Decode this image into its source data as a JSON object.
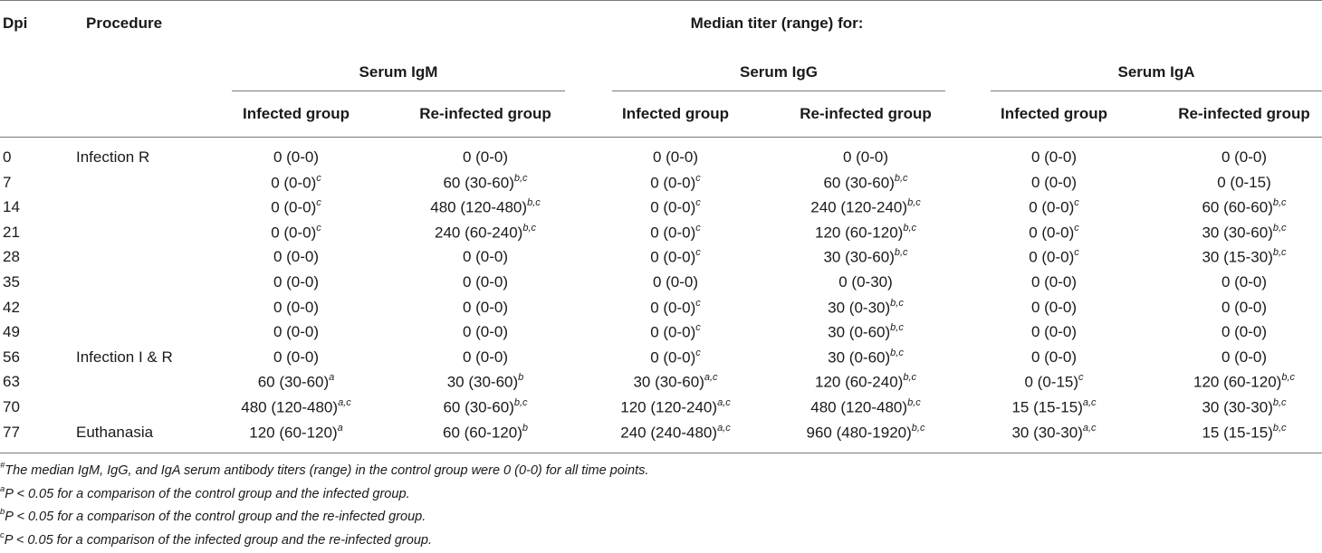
{
  "header": {
    "dpi": "Dpi",
    "procedure": "Procedure",
    "median_title": "Median titer (range) for:",
    "groups": [
      "Serum IgM",
      "Serum IgG",
      "Serum IgA"
    ],
    "subcols": [
      "Infected group",
      "Re-infected group",
      "Infected group",
      "Re-infected group",
      "Infected group",
      "Re-infected group"
    ]
  },
  "rows": [
    {
      "dpi": "0",
      "procedure": "Infection R",
      "cells": [
        {
          "v": "0 (0-0)",
          "s": ""
        },
        {
          "v": "0 (0-0)",
          "s": ""
        },
        {
          "v": "0 (0-0)",
          "s": ""
        },
        {
          "v": "0 (0-0)",
          "s": ""
        },
        {
          "v": "0 (0-0)",
          "s": ""
        },
        {
          "v": "0 (0-0)",
          "s": ""
        }
      ]
    },
    {
      "dpi": "7",
      "procedure": "",
      "cells": [
        {
          "v": "0 (0-0)",
          "s": "c"
        },
        {
          "v": "60 (30-60)",
          "s": "b,c"
        },
        {
          "v": "0 (0-0)",
          "s": "c"
        },
        {
          "v": "60 (30-60)",
          "s": "b,c"
        },
        {
          "v": "0 (0-0)",
          "s": ""
        },
        {
          "v": "0 (0-15)",
          "s": ""
        }
      ]
    },
    {
      "dpi": "14",
      "procedure": "",
      "cells": [
        {
          "v": "0 (0-0)",
          "s": "c"
        },
        {
          "v": "480 (120-480)",
          "s": "b,c"
        },
        {
          "v": "0 (0-0)",
          "s": "c"
        },
        {
          "v": "240 (120-240)",
          "s": "b,c"
        },
        {
          "v": "0 (0-0)",
          "s": "c"
        },
        {
          "v": "60 (60-60)",
          "s": "b,c"
        }
      ]
    },
    {
      "dpi": "21",
      "procedure": "",
      "cells": [
        {
          "v": "0 (0-0)",
          "s": "c"
        },
        {
          "v": "240 (60-240)",
          "s": "b,c"
        },
        {
          "v": "0 (0-0)",
          "s": "c"
        },
        {
          "v": "120 (60-120)",
          "s": "b,c"
        },
        {
          "v": "0 (0-0)",
          "s": "c"
        },
        {
          "v": "30 (30-60)",
          "s": "b,c"
        }
      ]
    },
    {
      "dpi": "28",
      "procedure": "",
      "cells": [
        {
          "v": "0 (0-0)",
          "s": ""
        },
        {
          "v": "0 (0-0)",
          "s": ""
        },
        {
          "v": "0 (0-0)",
          "s": "c"
        },
        {
          "v": "30 (30-60)",
          "s": "b,c"
        },
        {
          "v": "0 (0-0)",
          "s": "c"
        },
        {
          "v": "30 (15-30)",
          "s": "b,c"
        }
      ]
    },
    {
      "dpi": "35",
      "procedure": "",
      "cells": [
        {
          "v": "0 (0-0)",
          "s": ""
        },
        {
          "v": "0 (0-0)",
          "s": ""
        },
        {
          "v": "0 (0-0)",
          "s": ""
        },
        {
          "v": "0 (0-30)",
          "s": ""
        },
        {
          "v": "0 (0-0)",
          "s": ""
        },
        {
          "v": "0 (0-0)",
          "s": ""
        }
      ]
    },
    {
      "dpi": "42",
      "procedure": "",
      "cells": [
        {
          "v": "0 (0-0)",
          "s": ""
        },
        {
          "v": "0 (0-0)",
          "s": ""
        },
        {
          "v": "0 (0-0)",
          "s": "c"
        },
        {
          "v": "30 (0-30)",
          "s": "b,c"
        },
        {
          "v": "0 (0-0)",
          "s": ""
        },
        {
          "v": "0 (0-0)",
          "s": ""
        }
      ]
    },
    {
      "dpi": "49",
      "procedure": "",
      "cells": [
        {
          "v": "0 (0-0)",
          "s": ""
        },
        {
          "v": "0 (0-0)",
          "s": ""
        },
        {
          "v": "0 (0-0)",
          "s": "c"
        },
        {
          "v": "30 (0-60)",
          "s": "b,c"
        },
        {
          "v": "0 (0-0)",
          "s": ""
        },
        {
          "v": "0 (0-0)",
          "s": ""
        }
      ]
    },
    {
      "dpi": "56",
      "procedure": "Infection I & R",
      "cells": [
        {
          "v": "0 (0-0)",
          "s": ""
        },
        {
          "v": "0 (0-0)",
          "s": ""
        },
        {
          "v": "0 (0-0)",
          "s": "c"
        },
        {
          "v": "30 (0-60)",
          "s": "b,c"
        },
        {
          "v": "0 (0-0)",
          "s": ""
        },
        {
          "v": "0 (0-0)",
          "s": ""
        }
      ]
    },
    {
      "dpi": "63",
      "procedure": "",
      "cells": [
        {
          "v": "60 (30-60)",
          "s": "a"
        },
        {
          "v": "30 (30-60)",
          "s": "b"
        },
        {
          "v": "30 (30-60)",
          "s": "a,c"
        },
        {
          "v": "120 (60-240)",
          "s": "b,c"
        },
        {
          "v": "0 (0-15)",
          "s": "c"
        },
        {
          "v": "120 (60-120)",
          "s": "b,c"
        }
      ]
    },
    {
      "dpi": "70",
      "procedure": "",
      "cells": [
        {
          "v": "480 (120-480)",
          "s": "a,c"
        },
        {
          "v": "60 (30-60)",
          "s": "b,c"
        },
        {
          "v": "120 (120-240)",
          "s": "a,c"
        },
        {
          "v": "480 (120-480)",
          "s": "b,c"
        },
        {
          "v": "15 (15-15)",
          "s": "a,c"
        },
        {
          "v": "30 (30-30)",
          "s": "b,c"
        }
      ]
    },
    {
      "dpi": "77",
      "procedure": "Euthanasia",
      "cells": [
        {
          "v": "120 (60-120)",
          "s": "a"
        },
        {
          "v": "60 (60-120)",
          "s": "b"
        },
        {
          "v": "240 (240-480)",
          "s": "a,c"
        },
        {
          "v": "960 (480-1920)",
          "s": "b,c"
        },
        {
          "v": "30 (30-30)",
          "s": "a,c"
        },
        {
          "v": "15 (15-15)",
          "s": "b,c"
        }
      ]
    }
  ],
  "footnotes": [
    {
      "sup": "#",
      "text": "The median IgM, IgG, and IgA serum antibody titers (range) in the control group were 0 (0-0) for all time points."
    },
    {
      "sup": "a",
      "text": "P < 0.05 for a comparison of the control group and the infected group."
    },
    {
      "sup": "b",
      "text": "P < 0.05 for a comparison of the control group and the re-infected group."
    },
    {
      "sup": "c",
      "text": "P < 0.05 for a comparison of the infected group and the re-infected group."
    }
  ]
}
